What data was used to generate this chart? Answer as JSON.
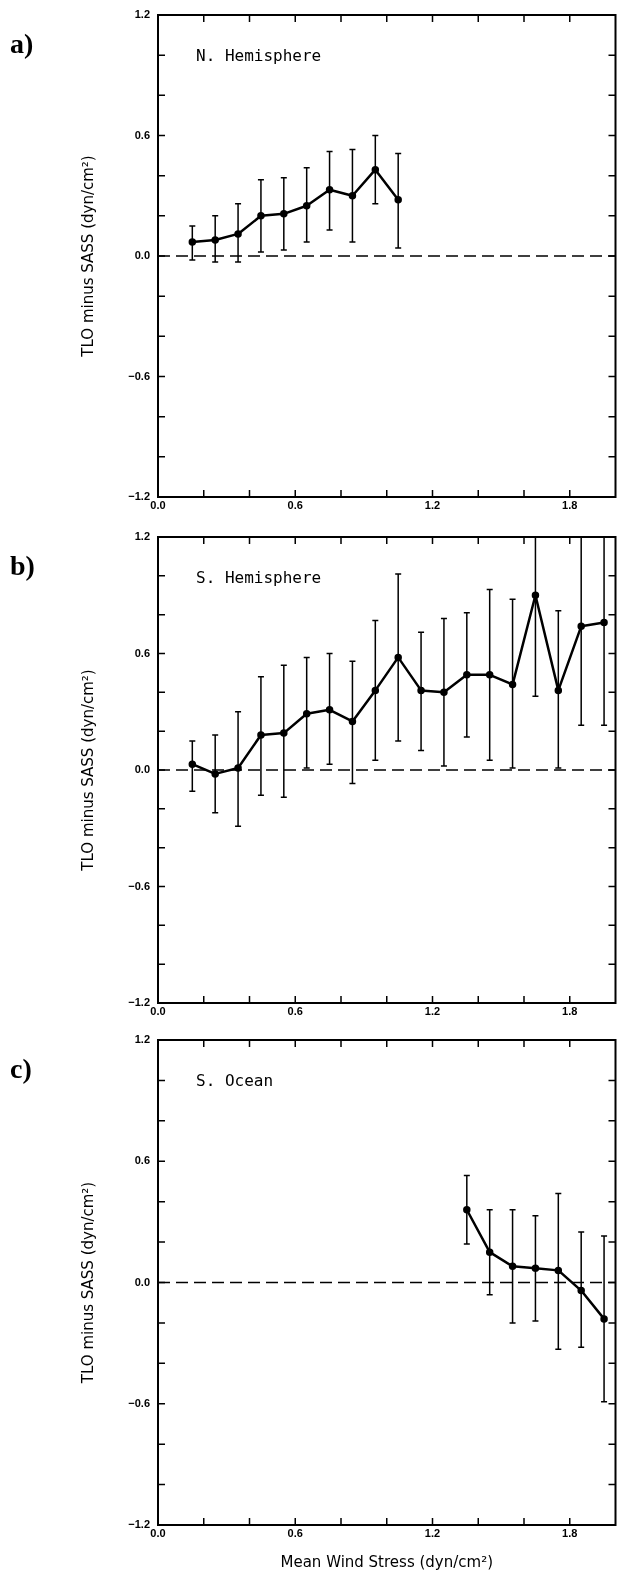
{
  "chart_data": [
    {
      "type": "line",
      "title": "N. Hemisphere",
      "ylabel": "TLO minus SASS (dyn/cm²)",
      "annotations": [
        "a)"
      ],
      "x": [
        0.15,
        0.25,
        0.35,
        0.45,
        0.55,
        0.65,
        0.75,
        0.85,
        0.95,
        1.05
      ],
      "series": [
        {
          "color": "#000000",
          "values": [
            0.07,
            0.08,
            0.11,
            0.2,
            0.21,
            0.25,
            0.33,
            0.3,
            0.43,
            0.28
          ],
          "errors": [
            [
              -0.02,
              0.15
            ],
            [
              -0.03,
              0.2
            ],
            [
              -0.03,
              0.26
            ],
            [
              0.02,
              0.38
            ],
            [
              0.03,
              0.39
            ],
            [
              0.07,
              0.44
            ],
            [
              0.13,
              0.52
            ],
            [
              0.07,
              0.53
            ],
            [
              0.26,
              0.6
            ],
            [
              0.04,
              0.51
            ]
          ]
        }
      ],
      "xlim": [
        0,
        2.0
      ],
      "ylim": [
        -1.2,
        1.2
      ],
      "xticks": [
        {
          "value": 0,
          "label": "0.0"
        },
        {
          "value": 0.2,
          "label": null
        },
        {
          "value": 0.4,
          "label": null
        },
        {
          "value": 0.6,
          "label": "0.6"
        },
        {
          "value": 0.8,
          "label": null
        },
        {
          "value": 1.0,
          "label": null
        },
        {
          "value": 1.2,
          "label": "1.2"
        },
        {
          "value": 1.4,
          "label": null
        },
        {
          "value": 1.6,
          "label": null
        },
        {
          "value": 1.8,
          "label": "1.8"
        }
      ],
      "yticks": [
        {
          "value": -1.2,
          "label": "−1.2"
        },
        {
          "value": -1.0,
          "label": null
        },
        {
          "value": -0.8,
          "label": null
        },
        {
          "value": -0.6,
          "label": "−0.6"
        },
        {
          "value": -0.4,
          "label": null
        },
        {
          "value": -0.2,
          "label": null
        },
        {
          "value": 0,
          "label": "0.0"
        },
        {
          "value": 0.2,
          "label": null
        },
        {
          "value": 0.4,
          "label": null
        },
        {
          "value": 0.6,
          "label": "0.6"
        },
        {
          "value": 0.8,
          "label": null
        },
        {
          "value": 1.0,
          "label": null
        },
        {
          "value": 1.2,
          "label": "1.2"
        }
      ],
      "ref_lines": [
        {
          "axis": "y",
          "value": 0,
          "line_style": "dashed"
        }
      ],
      "marker": "circle",
      "line_style": "solid"
    },
    {
      "type": "line",
      "title": "S. Hemisphere",
      "ylabel": "TLO minus SASS (dyn/cm²)",
      "annotations": [
        "b)"
      ],
      "x": [
        0.15,
        0.25,
        0.35,
        0.45,
        0.55,
        0.65,
        0.75,
        0.85,
        0.95,
        1.05,
        1.15,
        1.25,
        1.35,
        1.45,
        1.55,
        1.65,
        1.75,
        1.85,
        1.95
      ],
      "series": [
        {
          "color": "#000000",
          "values": [
            0.03,
            -0.02,
            0.01,
            0.18,
            0.19,
            0.29,
            0.31,
            0.25,
            0.41,
            0.58,
            0.41,
            0.4,
            0.49,
            0.49,
            0.44,
            0.9,
            0.41,
            0.74,
            0.76
          ],
          "errors": [
            [
              -0.11,
              0.15
            ],
            [
              -0.22,
              0.18
            ],
            [
              -0.29,
              0.3
            ],
            [
              -0.13,
              0.48
            ],
            [
              -0.14,
              0.54
            ],
            [
              0.01,
              0.58
            ],
            [
              0.03,
              0.6
            ],
            [
              -0.07,
              0.56
            ],
            [
              0.05,
              0.77
            ],
            [
              0.15,
              1.01
            ],
            [
              0.1,
              0.71
            ],
            [
              0.02,
              0.78
            ],
            [
              0.17,
              0.81
            ],
            [
              0.05,
              0.93
            ],
            [
              0.01,
              0.88
            ],
            [
              0.38,
              1.2
            ],
            [
              0.01,
              0.82
            ],
            [
              0.23,
              1.2
            ],
            [
              0.23,
              1.2
            ]
          ]
        }
      ],
      "xlim": [
        0,
        2.0
      ],
      "ylim": [
        -1.2,
        1.2
      ],
      "xticks": [
        {
          "value": 0,
          "label": "0.0"
        },
        {
          "value": 0.2,
          "label": null
        },
        {
          "value": 0.4,
          "label": null
        },
        {
          "value": 0.6,
          "label": "0.6"
        },
        {
          "value": 0.8,
          "label": null
        },
        {
          "value": 1.0,
          "label": null
        },
        {
          "value": 1.2,
          "label": "1.2"
        },
        {
          "value": 1.4,
          "label": null
        },
        {
          "value": 1.6,
          "label": null
        },
        {
          "value": 1.8,
          "label": "1.8"
        }
      ],
      "yticks": [
        {
          "value": -1.2,
          "label": "−1.2"
        },
        {
          "value": -1.0,
          "label": null
        },
        {
          "value": -0.8,
          "label": null
        },
        {
          "value": -0.6,
          "label": "−0.6"
        },
        {
          "value": -0.4,
          "label": null
        },
        {
          "value": -0.2,
          "label": null
        },
        {
          "value": 0,
          "label": "0.0"
        },
        {
          "value": 0.2,
          "label": null
        },
        {
          "value": 0.4,
          "label": null
        },
        {
          "value": 0.6,
          "label": "0.6"
        },
        {
          "value": 0.8,
          "label": null
        },
        {
          "value": 1.0,
          "label": null
        },
        {
          "value": 1.2,
          "label": "1.2"
        }
      ],
      "ref_lines": [
        {
          "axis": "y",
          "value": 0,
          "line_style": "dashed"
        }
      ],
      "marker": "circle",
      "line_style": "solid"
    },
    {
      "type": "line",
      "title": "S. Ocean",
      "xlabel": "Mean Wind Stress (dyn/cm²)",
      "ylabel": "TLO minus SASS (dyn/cm²)",
      "annotations": [
        "c)"
      ],
      "x": [
        1.35,
        1.45,
        1.55,
        1.65,
        1.75,
        1.85,
        1.95
      ],
      "series": [
        {
          "color": "#000000",
          "values": [
            0.36,
            0.15,
            0.08,
            0.07,
            0.06,
            -0.04,
            -0.18
          ],
          "errors": [
            [
              0.19,
              0.53
            ],
            [
              -0.06,
              0.36
            ],
            [
              -0.2,
              0.36
            ],
            [
              -0.19,
              0.33
            ],
            [
              -0.33,
              0.44
            ],
            [
              -0.32,
              0.25
            ],
            [
              -0.59,
              0.23
            ]
          ]
        }
      ],
      "xlim": [
        0,
        2.0
      ],
      "ylim": [
        -1.2,
        1.2
      ],
      "xticks": [
        {
          "value": 0,
          "label": "0.0"
        },
        {
          "value": 0.2,
          "label": null
        },
        {
          "value": 0.4,
          "label": null
        },
        {
          "value": 0.6,
          "label": "0.6"
        },
        {
          "value": 0.8,
          "label": null
        },
        {
          "value": 1.0,
          "label": null
        },
        {
          "value": 1.2,
          "label": "1.2"
        },
        {
          "value": 1.4,
          "label": null
        },
        {
          "value": 1.6,
          "label": null
        },
        {
          "value": 1.8,
          "label": "1.8"
        }
      ],
      "yticks": [
        {
          "value": -1.2,
          "label": "−1.2"
        },
        {
          "value": -1.0,
          "label": null
        },
        {
          "value": -0.8,
          "label": null
        },
        {
          "value": -0.6,
          "label": "−0.6"
        },
        {
          "value": -0.4,
          "label": null
        },
        {
          "value": -0.2,
          "label": null
        },
        {
          "value": 0,
          "label": "0.0"
        },
        {
          "value": 0.2,
          "label": null
        },
        {
          "value": 0.4,
          "label": null
        },
        {
          "value": 0.6,
          "label": "0.6"
        },
        {
          "value": 0.8,
          "label": null
        },
        {
          "value": 1.0,
          "label": null
        },
        {
          "value": 1.2,
          "label": "1.2"
        }
      ],
      "ref_lines": [
        {
          "axis": "y",
          "value": 0,
          "line_style": "dashed"
        }
      ],
      "marker": "circle",
      "line_style": "solid"
    }
  ]
}
